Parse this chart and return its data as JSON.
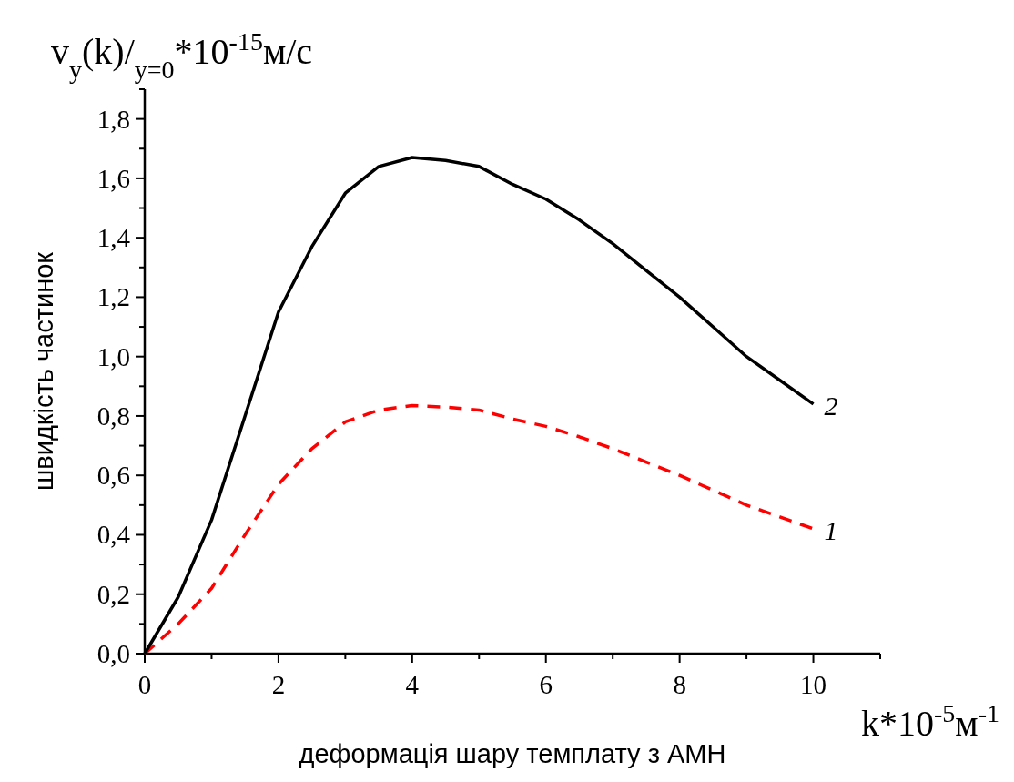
{
  "chart_data": {
    "type": "line",
    "xlabel": "деформація шару темплату з АМН",
    "ylabel": "швидкість частинок",
    "annotations": [
      "v$_{y}$(k)/$_{y=0}$*10$^{-15}$м/с",
      "k*10$^{-5}$м$^{-1}$"
    ],
    "x": [
      0,
      0.5,
      1,
      1.5,
      2,
      2.5,
      3,
      3.5,
      4,
      4.5,
      5,
      5.5,
      6,
      6.5,
      7,
      7.5,
      8,
      8.5,
      9,
      9.5,
      10
    ],
    "series": [
      {
        "name": "1",
        "color": "#ff0000",
        "line_style": "dashed",
        "values": [
          0,
          0.1,
          0.22,
          0.4,
          0.57,
          0.69,
          0.78,
          0.82,
          0.835,
          0.83,
          0.82,
          0.79,
          0.765,
          0.73,
          0.69,
          0.645,
          0.6,
          0.55,
          0.5,
          0.46,
          0.42
        ]
      },
      {
        "name": "2",
        "color": "#000000",
        "line_style": "solid",
        "values": [
          0,
          0.19,
          0.45,
          0.8,
          1.15,
          1.37,
          1.55,
          1.64,
          1.67,
          1.66,
          1.64,
          1.58,
          1.53,
          1.46,
          1.38,
          1.29,
          1.2,
          1.1,
          1.0,
          0.92,
          0.84
        ]
      }
    ],
    "xlim": [
      0,
      11
    ],
    "xticks": [
      0,
      {
        "value": 1,
        "label": null
      },
      2,
      {
        "value": 3,
        "label": null
      },
      4,
      {
        "value": 5,
        "label": null
      },
      6,
      {
        "value": 7,
        "label": null
      },
      8,
      {
        "value": 9,
        "label": null
      },
      10,
      {
        "value": 11,
        "label": null
      }
    ],
    "ylim": [
      0,
      1.9
    ],
    "yticks": [
      {
        "value": 0,
        "label": "0,0"
      },
      {
        "value": 0.1,
        "label": null
      },
      {
        "value": 0.2,
        "label": "0,2"
      },
      {
        "value": 0.3,
        "label": null
      },
      {
        "value": 0.4,
        "label": "0,4"
      },
      {
        "value": 0.5,
        "label": null
      },
      {
        "value": 0.6,
        "label": "0,6"
      },
      {
        "value": 0.7,
        "label": null
      },
      {
        "value": 0.8,
        "label": "0,8"
      },
      {
        "value": 0.9,
        "label": null
      },
      {
        "value": 1.0,
        "label": "1,0"
      },
      {
        "value": 1.1,
        "label": null
      },
      {
        "value": 1.2,
        "label": "1,2"
      },
      {
        "value": 1.3,
        "label": null
      },
      {
        "value": 1.4,
        "label": "1,4"
      },
      {
        "value": 1.5,
        "label": null
      },
      {
        "value": 1.6,
        "label": "1,6"
      },
      {
        "value": 1.7,
        "label": null
      },
      {
        "value": 1.8,
        "label": "1,8"
      },
      {
        "value": 1.9,
        "label": null
      }
    ],
    "grid": false,
    "marker": "none"
  }
}
